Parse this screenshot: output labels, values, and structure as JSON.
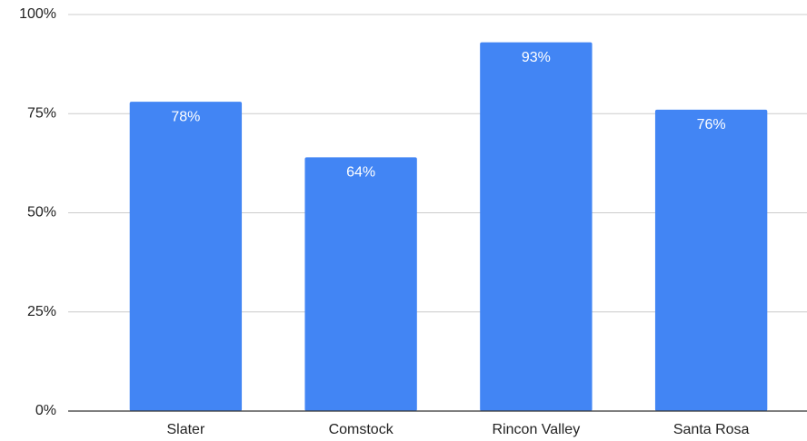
{
  "chart_data": {
    "type": "bar",
    "categories": [
      "Slater",
      "Comstock",
      "Rincon Valley",
      "Santa Rosa"
    ],
    "values": [
      78,
      64,
      93,
      76
    ],
    "value_labels": [
      "78%",
      "64%",
      "93%",
      "76%"
    ],
    "color": "#4285f4",
    "ylim": [
      0,
      100
    ],
    "yticks": [
      {
        "value": 0,
        "label": "0%"
      },
      {
        "value": 25,
        "label": "25%"
      },
      {
        "value": 50,
        "label": "50%"
      },
      {
        "value": 75,
        "label": "75%"
      },
      {
        "value": 100,
        "label": "100%"
      }
    ],
    "grid": true
  }
}
